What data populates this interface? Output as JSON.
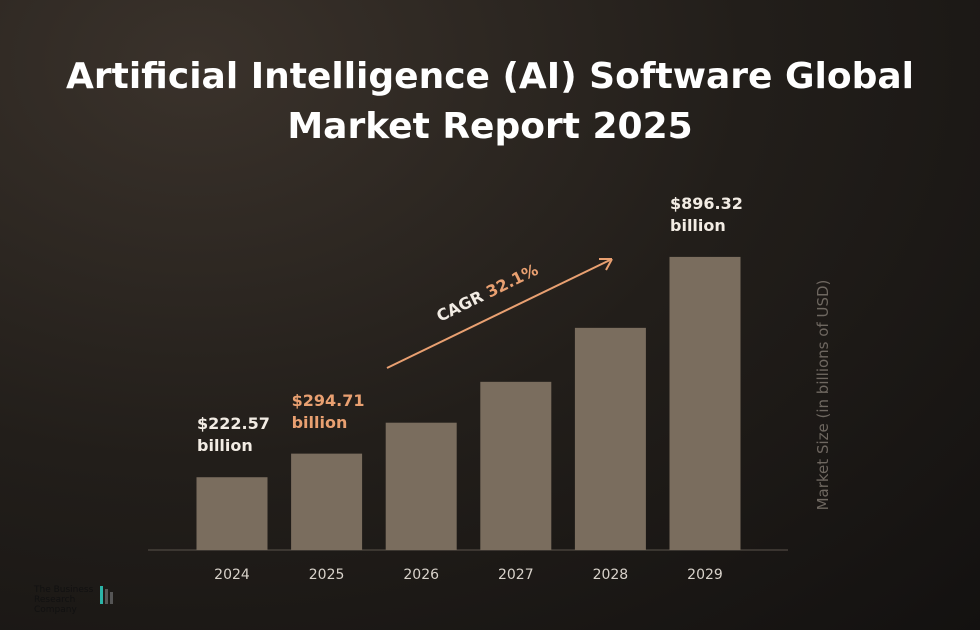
{
  "chart_data": {
    "type": "bar",
    "title": "Artificial Intelligence (AI) Software Global Market Report 2025",
    "categories": [
      "2024",
      "2025",
      "2026",
      "2027",
      "2028",
      "2029"
    ],
    "values": [
      222.57,
      294.71,
      389.31,
      514.28,
      679.36,
      896.32
    ],
    "value_labels": [
      "$222.57 billion",
      "$294.71 billion",
      null,
      null,
      null,
      "$896.32 billion"
    ],
    "color": "#7a6d5e",
    "ylim": [
      0,
      1000
    ],
    "y_label": "Market Size (in billions of USD)",
    "annotation": {
      "label": "CAGR",
      "value": "32.1%"
    },
    "source": "The Business Research Company"
  }
}
